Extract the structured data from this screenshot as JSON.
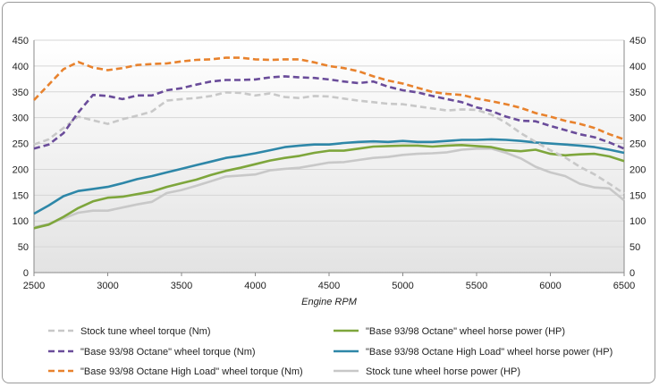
{
  "chart_data": {
    "type": "line",
    "xlabel": "Engine RPM",
    "ylabel": "",
    "y2label": "",
    "xlim": [
      2500,
      6500
    ],
    "ylim": [
      0,
      450
    ],
    "x_ticks": [
      2500,
      3000,
      3500,
      4000,
      4500,
      5000,
      5500,
      6000,
      6500
    ],
    "y_ticks": [
      0,
      50,
      100,
      150,
      200,
      250,
      300,
      350,
      400,
      450
    ],
    "grid": "horizontal",
    "legend_position": "bottom",
    "series": [
      {
        "name": "Stock tune wheel torque (Nm)",
        "color": "#c8c8c8",
        "style": "dashed",
        "points": [
          [
            2500,
            248
          ],
          [
            2600,
            258
          ],
          [
            2700,
            280
          ],
          [
            2800,
            302
          ],
          [
            2900,
            295
          ],
          [
            3000,
            288
          ],
          [
            3100,
            297
          ],
          [
            3200,
            304
          ],
          [
            3300,
            312
          ],
          [
            3400,
            333
          ],
          [
            3500,
            336
          ],
          [
            3600,
            338
          ],
          [
            3700,
            342
          ],
          [
            3800,
            349
          ],
          [
            3900,
            348
          ],
          [
            4000,
            343
          ],
          [
            4100,
            347
          ],
          [
            4200,
            340
          ],
          [
            4300,
            338
          ],
          [
            4400,
            342
          ],
          [
            4500,
            341
          ],
          [
            4600,
            337
          ],
          [
            4700,
            333
          ],
          [
            4800,
            330
          ],
          [
            4900,
            327
          ],
          [
            5000,
            326
          ],
          [
            5100,
            322
          ],
          [
            5200,
            318
          ],
          [
            5300,
            314
          ],
          [
            5400,
            316
          ],
          [
            5500,
            315
          ],
          [
            5600,
            306
          ],
          [
            5700,
            290
          ],
          [
            5800,
            270
          ],
          [
            5900,
            253
          ],
          [
            6000,
            237
          ],
          [
            6100,
            223
          ],
          [
            6200,
            205
          ],
          [
            6300,
            190
          ],
          [
            6400,
            172
          ],
          [
            6500,
            153
          ]
        ]
      },
      {
        "name": "\"Base 93/98 Octane\" wheel torque (Nm)",
        "color": "#6a4c9a",
        "style": "dashed",
        "points": [
          [
            2500,
            240
          ],
          [
            2600,
            248
          ],
          [
            2700,
            270
          ],
          [
            2800,
            310
          ],
          [
            2900,
            344
          ],
          [
            3000,
            342
          ],
          [
            3100,
            336
          ],
          [
            3200,
            343
          ],
          [
            3300,
            343
          ],
          [
            3400,
            353
          ],
          [
            3500,
            357
          ],
          [
            3600,
            364
          ],
          [
            3700,
            370
          ],
          [
            3800,
            373
          ],
          [
            3900,
            373
          ],
          [
            4000,
            374
          ],
          [
            4100,
            378
          ],
          [
            4200,
            380
          ],
          [
            4300,
            378
          ],
          [
            4400,
            377
          ],
          [
            4500,
            374
          ],
          [
            4600,
            370
          ],
          [
            4700,
            367
          ],
          [
            4800,
            370
          ],
          [
            4900,
            360
          ],
          [
            5000,
            353
          ],
          [
            5100,
            349
          ],
          [
            5200,
            342
          ],
          [
            5300,
            336
          ],
          [
            5400,
            330
          ],
          [
            5500,
            320
          ],
          [
            5600,
            313
          ],
          [
            5700,
            302
          ],
          [
            5800,
            294
          ],
          [
            5900,
            293
          ],
          [
            6000,
            284
          ],
          [
            6100,
            276
          ],
          [
            6200,
            268
          ],
          [
            6300,
            262
          ],
          [
            6400,
            252
          ],
          [
            6500,
            240
          ]
        ]
      },
      {
        "name": "\"Base 93/98 Octane High Load\" wheel torque (Nm)",
        "color": "#e8822d",
        "style": "dashed",
        "points": [
          [
            2500,
            334
          ],
          [
            2600,
            364
          ],
          [
            2700,
            394
          ],
          [
            2800,
            408
          ],
          [
            2900,
            397
          ],
          [
            3000,
            392
          ],
          [
            3100,
            396
          ],
          [
            3200,
            402
          ],
          [
            3300,
            404
          ],
          [
            3400,
            405
          ],
          [
            3500,
            409
          ],
          [
            3600,
            412
          ],
          [
            3700,
            413
          ],
          [
            3800,
            416
          ],
          [
            3900,
            416
          ],
          [
            4000,
            413
          ],
          [
            4100,
            412
          ],
          [
            4200,
            413
          ],
          [
            4300,
            413
          ],
          [
            4400,
            407
          ],
          [
            4500,
            400
          ],
          [
            4600,
            396
          ],
          [
            4700,
            390
          ],
          [
            4800,
            380
          ],
          [
            4900,
            372
          ],
          [
            5000,
            366
          ],
          [
            5100,
            358
          ],
          [
            5200,
            350
          ],
          [
            5300,
            346
          ],
          [
            5400,
            344
          ],
          [
            5500,
            337
          ],
          [
            5600,
            332
          ],
          [
            5700,
            326
          ],
          [
            5800,
            319
          ],
          [
            5900,
            309
          ],
          [
            6000,
            302
          ],
          [
            6100,
            294
          ],
          [
            6200,
            288
          ],
          [
            6300,
            280
          ],
          [
            6400,
            268
          ],
          [
            6500,
            258
          ]
        ]
      },
      {
        "name": "\"Base 93/98 Octane\" wheel horse power (HP)",
        "color": "#7ea63c",
        "style": "solid",
        "points": [
          [
            2500,
            86
          ],
          [
            2600,
            93
          ],
          [
            2700,
            108
          ],
          [
            2800,
            125
          ],
          [
            2900,
            138
          ],
          [
            3000,
            145
          ],
          [
            3100,
            147
          ],
          [
            3200,
            152
          ],
          [
            3300,
            157
          ],
          [
            3400,
            166
          ],
          [
            3500,
            173
          ],
          [
            3600,
            180
          ],
          [
            3700,
            189
          ],
          [
            3800,
            197
          ],
          [
            3900,
            203
          ],
          [
            4000,
            210
          ],
          [
            4100,
            217
          ],
          [
            4200,
            222
          ],
          [
            4300,
            226
          ],
          [
            4400,
            232
          ],
          [
            4500,
            236
          ],
          [
            4600,
            236
          ],
          [
            4700,
            240
          ],
          [
            4800,
            244
          ],
          [
            4900,
            245
          ],
          [
            5000,
            246
          ],
          [
            5100,
            246
          ],
          [
            5200,
            244
          ],
          [
            5300,
            246
          ],
          [
            5400,
            247
          ],
          [
            5500,
            245
          ],
          [
            5600,
            243
          ],
          [
            5700,
            237
          ],
          [
            5800,
            235
          ],
          [
            5900,
            238
          ],
          [
            6000,
            230
          ],
          [
            6100,
            227
          ],
          [
            6200,
            229
          ],
          [
            6300,
            230
          ],
          [
            6400,
            225
          ],
          [
            6500,
            216
          ]
        ]
      },
      {
        "name": "\"Base 93/98 Octane High Load\" wheel horse power (HP)",
        "color": "#2e87a8",
        "style": "solid",
        "points": [
          [
            2500,
            114
          ],
          [
            2600,
            130
          ],
          [
            2700,
            148
          ],
          [
            2800,
            158
          ],
          [
            2900,
            162
          ],
          [
            3000,
            166
          ],
          [
            3100,
            173
          ],
          [
            3200,
            181
          ],
          [
            3300,
            187
          ],
          [
            3400,
            194
          ],
          [
            3500,
            201
          ],
          [
            3600,
            208
          ],
          [
            3700,
            215
          ],
          [
            3800,
            222
          ],
          [
            3900,
            226
          ],
          [
            4000,
            231
          ],
          [
            4100,
            237
          ],
          [
            4200,
            243
          ],
          [
            4300,
            246
          ],
          [
            4400,
            248
          ],
          [
            4500,
            248
          ],
          [
            4600,
            251
          ],
          [
            4700,
            253
          ],
          [
            4800,
            254
          ],
          [
            4900,
            253
          ],
          [
            5000,
            255
          ],
          [
            5100,
            253
          ],
          [
            5200,
            253
          ],
          [
            5300,
            255
          ],
          [
            5400,
            257
          ],
          [
            5500,
            257
          ],
          [
            5600,
            258
          ],
          [
            5700,
            257
          ],
          [
            5800,
            255
          ],
          [
            5900,
            252
          ],
          [
            6000,
            250
          ],
          [
            6100,
            248
          ],
          [
            6200,
            246
          ],
          [
            6300,
            243
          ],
          [
            6400,
            238
          ],
          [
            6500,
            232
          ]
        ]
      },
      {
        "name": "Stock tune wheel horse power (HP)",
        "color": "#c8c8c8",
        "style": "solid",
        "points": [
          [
            2500,
            88
          ],
          [
            2600,
            94
          ],
          [
            2700,
            105
          ],
          [
            2800,
            116
          ],
          [
            2900,
            120
          ],
          [
            3000,
            120
          ],
          [
            3100,
            126
          ],
          [
            3200,
            132
          ],
          [
            3300,
            137
          ],
          [
            3400,
            154
          ],
          [
            3500,
            160
          ],
          [
            3600,
            168
          ],
          [
            3700,
            177
          ],
          [
            3800,
            186
          ],
          [
            3900,
            188
          ],
          [
            4000,
            190
          ],
          [
            4100,
            198
          ],
          [
            4200,
            201
          ],
          [
            4300,
            203
          ],
          [
            4400,
            208
          ],
          [
            4500,
            213
          ],
          [
            4600,
            214
          ],
          [
            4700,
            218
          ],
          [
            4800,
            222
          ],
          [
            4900,
            224
          ],
          [
            5000,
            228
          ],
          [
            5100,
            230
          ],
          [
            5200,
            231
          ],
          [
            5300,
            233
          ],
          [
            5400,
            238
          ],
          [
            5500,
            240
          ],
          [
            5600,
            240
          ],
          [
            5700,
            232
          ],
          [
            5800,
            221
          ],
          [
            5900,
            205
          ],
          [
            6000,
            194
          ],
          [
            6100,
            187
          ],
          [
            6200,
            172
          ],
          [
            6300,
            165
          ],
          [
            6400,
            163
          ],
          [
            6500,
            140
          ]
        ]
      }
    ]
  }
}
